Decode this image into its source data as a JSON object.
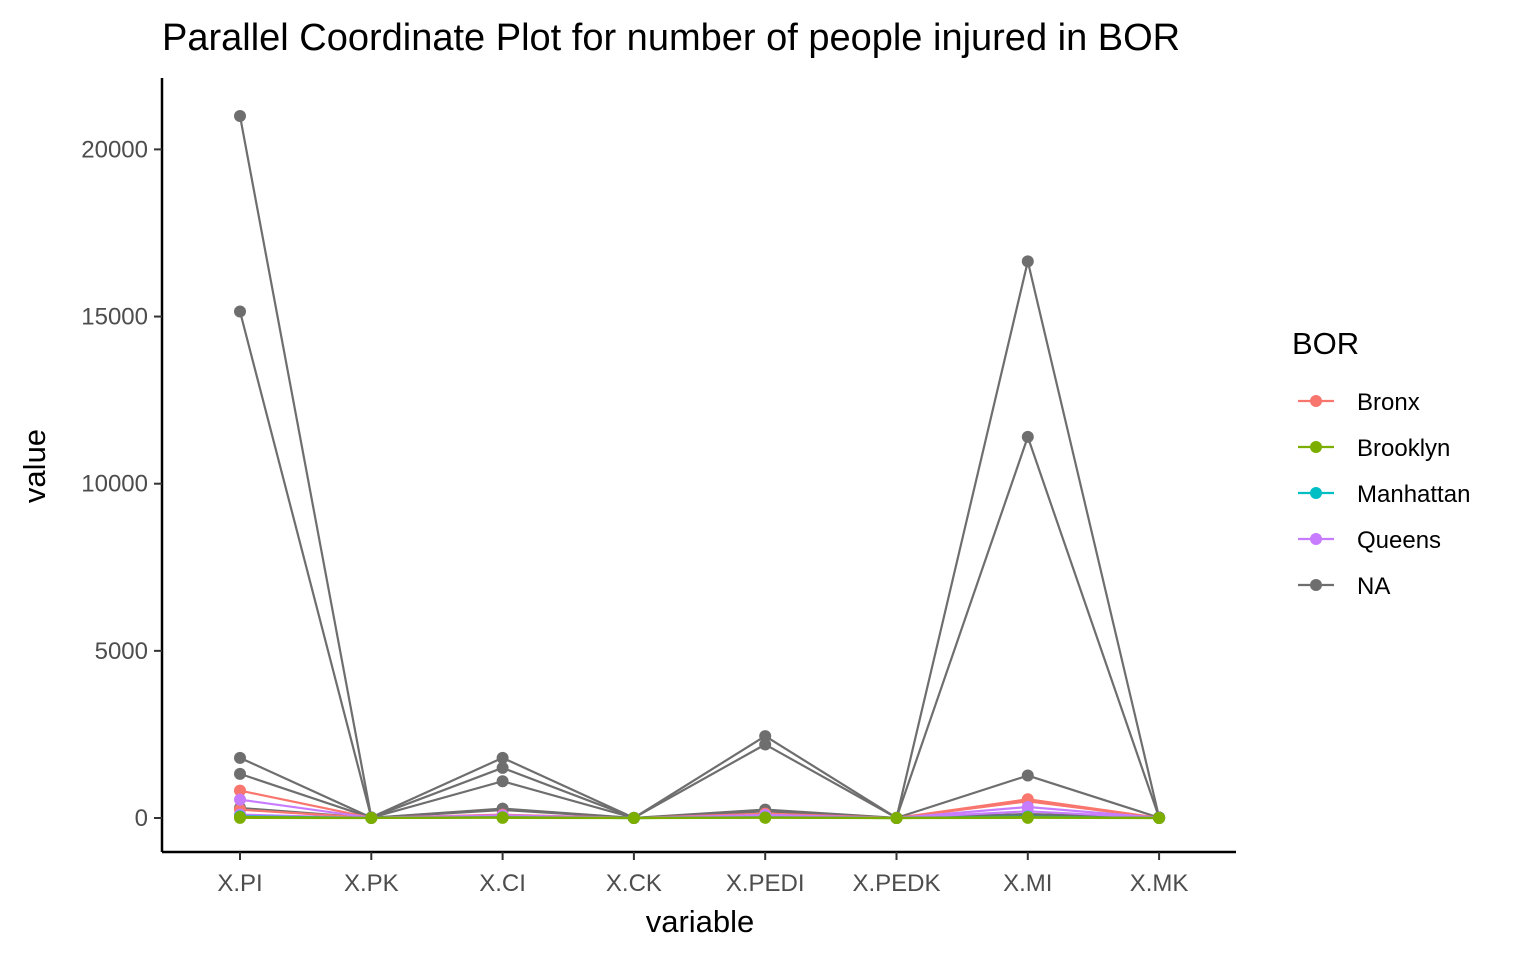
{
  "chart_data": {
    "type": "line",
    "title": "Parallel Coordinate Plot for number of people injured in BOR",
    "xlabel": "variable",
    "ylabel": "value",
    "categories": [
      "X.PI",
      "X.PK",
      "X.CI",
      "X.CK",
      "X.PEDI",
      "X.PEDK",
      "X.MI",
      "X.MK"
    ],
    "ylim": [
      -1000,
      22000
    ],
    "yticks": [
      0,
      5000,
      10000,
      15000,
      20000
    ],
    "ytick_labels": [
      "0",
      "5000",
      "10000",
      "15000",
      "20000"
    ],
    "grid": false,
    "legend": {
      "title": "BOR",
      "placement": "right",
      "entries": [
        "Bronx",
        "Brooklyn",
        "Manhattan",
        "Queens",
        "NA"
      ]
    },
    "colors": {
      "Bronx": "#F8766D",
      "Brooklyn": "#7CAE00",
      "Manhattan": "#00BFC4",
      "Queens": "#C77CFF",
      "NA": "#6e6e6e"
    },
    "series": [
      {
        "group": "NA",
        "values": [
          21000,
          20,
          1800,
          5,
          2450,
          5,
          16650,
          20
        ]
      },
      {
        "group": "NA",
        "values": [
          15150,
          15,
          1500,
          5,
          2200,
          5,
          11400,
          15
        ]
      },
      {
        "group": "NA",
        "values": [
          1800,
          10,
          1100,
          3,
          250,
          3,
          1270,
          10
        ]
      },
      {
        "group": "NA",
        "values": [
          1320,
          8,
          280,
          2,
          200,
          2,
          120,
          5
        ]
      },
      {
        "group": "NA",
        "values": [
          300,
          5,
          240,
          1,
          100,
          1,
          80,
          3
        ]
      },
      {
        "group": "Bronx",
        "values": [
          820,
          6,
          100,
          1,
          130,
          1,
          560,
          5
        ]
      },
      {
        "group": "Bronx",
        "values": [
          250,
          3,
          50,
          0,
          60,
          0,
          500,
          3
        ]
      },
      {
        "group": "Queens",
        "values": [
          550,
          5,
          80,
          0,
          90,
          0,
          330,
          4
        ]
      },
      {
        "group": "Queens",
        "values": [
          100,
          2,
          30,
          0,
          30,
          0,
          200,
          2
        ]
      },
      {
        "group": "Manhattan",
        "values": [
          50,
          2,
          20,
          0,
          20,
          0,
          40,
          1
        ]
      },
      {
        "group": "Brooklyn",
        "values": [
          30,
          2,
          20,
          0,
          15,
          0,
          25,
          1
        ]
      },
      {
        "group": "Brooklyn",
        "values": [
          5,
          1,
          5,
          0,
          5,
          0,
          5,
          0
        ]
      }
    ]
  }
}
